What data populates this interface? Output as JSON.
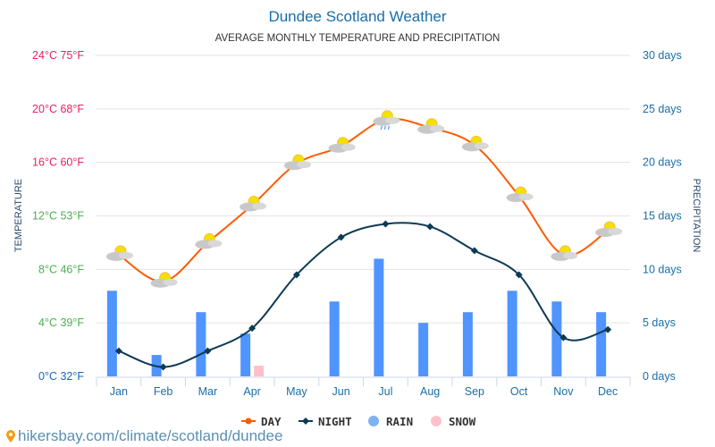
{
  "chart_data": {
    "type": "bar+line",
    "title": "Dundee Scotland Weather",
    "subtitle": "AVERAGE MONTHLY TEMPERATURE AND PRECIPITATION",
    "ylabel_left": "TEMPERATURE",
    "ylabel_right": "PRECIPITATION",
    "categories": [
      "Jan",
      "Feb",
      "Mar",
      "Apr",
      "May",
      "Jun",
      "Jul",
      "Aug",
      "Sep",
      "Oct",
      "Nov",
      "Dec"
    ],
    "left_ticks": [
      "0°C 32°F",
      "4°C 39°F",
      "8°C 46°F",
      "12°C 53°F",
      "16°C 60°F",
      "20°C 68°F",
      "24°C 75°F"
    ],
    "left_tick_colors": [
      "#1565c0",
      "#4caf50",
      "#4caf50",
      "#4caf50",
      "#e91e63",
      "#e91e63",
      "#e91e63"
    ],
    "right_ticks": [
      "0 days",
      "5 days",
      "10 days",
      "15 days",
      "20 days",
      "25 days",
      "30 days"
    ],
    "ylim_left": [
      0,
      24
    ],
    "ylim_right": [
      0,
      30
    ],
    "grid": true,
    "legend_placement": "bottom",
    "series": [
      {
        "name": "DAY",
        "type": "line",
        "axis": "left",
        "color": "#ff5a00",
        "values": [
          9.1,
          7.1,
          10.0,
          12.8,
          15.9,
          17.2,
          19.2,
          18.6,
          17.3,
          13.5,
          9.1,
          10.9
        ]
      },
      {
        "name": "NIGHT",
        "type": "line",
        "axis": "left",
        "color": "#0d3b54",
        "values": [
          1.9,
          0.7,
          1.9,
          3.6,
          7.6,
          10.4,
          11.4,
          11.2,
          9.4,
          7.6,
          2.9,
          3.5
        ]
      },
      {
        "name": "RAIN",
        "type": "bar",
        "axis": "right",
        "color": "#4f94ff",
        "values": [
          8,
          2,
          6,
          4,
          0,
          7,
          11,
          5,
          6,
          8,
          7,
          6
        ]
      },
      {
        "name": "SNOW",
        "type": "bar",
        "axis": "right",
        "color": "#ffc0cb",
        "values": [
          0,
          0,
          0,
          1,
          0,
          0,
          0,
          0,
          0,
          0,
          0,
          0
        ]
      }
    ],
    "day_icons": [
      "partly-cloudy",
      "partly-cloudy",
      "partly-cloudy",
      "partly-cloudy",
      "partly-cloudy",
      "partly-cloudy",
      "partly-cloudy-rain",
      "partly-cloudy",
      "partly-cloudy",
      "partly-cloudy",
      "partly-cloudy",
      "partly-cloudy"
    ]
  },
  "footer": {
    "text": "hikersbay.com/climate/scotland/dundee",
    "icon": "map-pin-icon"
  }
}
